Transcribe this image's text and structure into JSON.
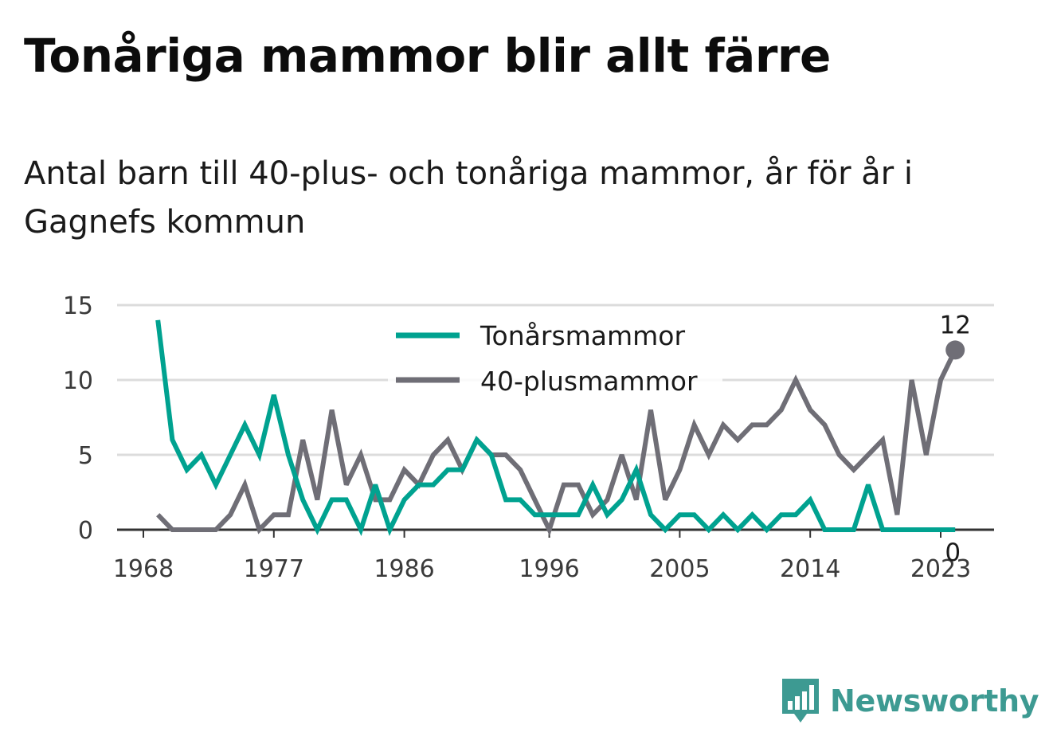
{
  "title": "Tonåriga mammor blir allt färre",
  "subtitle": "Antal barn till 40-plus- och tonåriga mammor, år för år i Gagnefs kommun",
  "brand": {
    "name": "Newsworthy",
    "icon": "newsworthy-logo-icon",
    "color": "#3d9a92"
  },
  "chart_data": {
    "type": "line",
    "x": [
      1969,
      1970,
      1971,
      1972,
      1973,
      1974,
      1975,
      1976,
      1977,
      1978,
      1979,
      1980,
      1981,
      1982,
      1983,
      1984,
      1985,
      1986,
      1987,
      1988,
      1989,
      1990,
      1991,
      1992,
      1993,
      1994,
      1995,
      1996,
      1997,
      1998,
      1999,
      2000,
      2001,
      2002,
      2003,
      2004,
      2005,
      2006,
      2007,
      2008,
      2009,
      2010,
      2011,
      2012,
      2013,
      2014,
      2015,
      2016,
      2017,
      2018,
      2019,
      2020,
      2021,
      2022,
      2023,
      2024
    ],
    "series": [
      {
        "name": "Tonårsmammor",
        "color": "#00a290",
        "values": [
          14,
          6,
          4,
          5,
          3,
          5,
          7,
          5,
          9,
          5,
          2,
          0,
          2,
          2,
          0,
          3,
          0,
          2,
          3,
          3,
          4,
          4,
          6,
          5,
          2,
          2,
          1,
          1,
          1,
          1,
          3,
          1,
          2,
          4,
          1,
          0,
          1,
          1,
          0,
          1,
          0,
          1,
          0,
          1,
          1,
          2,
          0,
          0,
          0,
          3,
          0,
          0,
          0,
          0,
          0,
          0
        ]
      },
      {
        "name": "40-plusmammor",
        "color": "#6f6e76",
        "values": [
          1,
          0,
          0,
          0,
          0,
          1,
          3,
          0,
          1,
          1,
          6,
          2,
          8,
          3,
          5,
          2,
          2,
          4,
          3,
          5,
          6,
          4,
          6,
          5,
          5,
          4,
          2,
          0,
          3,
          3,
          1,
          2,
          5,
          2,
          8,
          2,
          4,
          7,
          5,
          7,
          6,
          7,
          7,
          8,
          10,
          8,
          7,
          5,
          4,
          5,
          6,
          1,
          10,
          5,
          10,
          12
        ]
      }
    ],
    "xticks": [
      "1968",
      "1977",
      "1986",
      "1996",
      "2005",
      "2014",
      "2023"
    ],
    "yticks": [
      "0",
      "5",
      "10",
      "15"
    ],
    "ylim": [
      0,
      15
    ],
    "xlim": [
      1968,
      2025
    ],
    "end_labels": [
      "0",
      "12"
    ],
    "legend": "top-center",
    "grid": true
  }
}
